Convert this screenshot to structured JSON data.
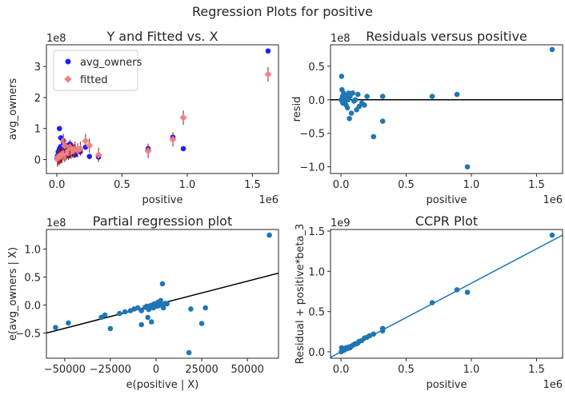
{
  "suptitle": "Regression Plots for positive",
  "chart_data": [
    {
      "type": "scatter",
      "title": "Y and Fitted vs. X",
      "xlabel": "positive",
      "ylabel": "avg_owners",
      "x_offset_label": "1e6",
      "y_offset_label": "1e8",
      "xlim": [
        -0.08,
        1.7
      ],
      "ylim": [
        -0.45,
        3.7
      ],
      "xticks": [
        0,
        0.5,
        1,
        1.5
      ],
      "xtick_labels": [
        "0.0",
        "0.5",
        "1.0",
        "1.5"
      ],
      "yticks": [
        0,
        1,
        2,
        3
      ],
      "ytick_labels": [
        "0",
        "1",
        "2",
        "3"
      ],
      "legend": {
        "placement": "top-left",
        "entries": [
          "avg_owners",
          "fitted"
        ]
      },
      "colors": {
        "observed": "#1f1fff",
        "fitted": "#f08080",
        "errbar": "#8b1a1a"
      },
      "series": [
        {
          "name": "avg_owners",
          "points": [
            [
              0.002,
              0.05
            ],
            [
              0.005,
              0.12
            ],
            [
              0.01,
              0.25
            ],
            [
              0.015,
              0.08
            ],
            [
              0.02,
              0.35
            ],
            [
              0.025,
              0.18
            ],
            [
              0.03,
              0.42
            ],
            [
              0.035,
              0.1
            ],
            [
              0.04,
              0.3
            ],
            [
              0.045,
              0.2
            ],
            [
              0.05,
              0.55
            ],
            [
              0.06,
              0.15
            ],
            [
              0.065,
              0.38
            ],
            [
              0.07,
              0.25
            ],
            [
              0.08,
              0.45
            ],
            [
              0.09,
              0.12
            ],
            [
              0.1,
              0.3
            ],
            [
              0.11,
              0.35
            ],
            [
              0.12,
              0.2
            ],
            [
              0.13,
              0.4
            ],
            [
              0.14,
              0.15
            ],
            [
              0.16,
              0.3
            ],
            [
              0.18,
              0.25
            ],
            [
              0.22,
              0.4
            ],
            [
              0.25,
              0.1
            ],
            [
              0.32,
              0.08
            ],
            [
              0.02,
              1.0
            ],
            [
              0.03,
              0.7
            ],
            [
              0.05,
              0.6
            ],
            [
              0.1,
              0.5
            ],
            [
              0.7,
              0.35
            ],
            [
              0.89,
              0.72
            ],
            [
              0.97,
              0.35
            ],
            [
              1.62,
              3.5
            ]
          ]
        },
        {
          "name": "fitted",
          "points": [
            [
              0.005,
              0.0
            ],
            [
              0.01,
              0.05
            ],
            [
              0.015,
              0.1
            ],
            [
              0.02,
              0.05
            ],
            [
              0.025,
              0.12
            ],
            [
              0.03,
              0.1
            ],
            [
              0.035,
              0.15
            ],
            [
              0.04,
              0.12
            ],
            [
              0.05,
              0.2
            ],
            [
              0.06,
              0.15
            ],
            [
              0.07,
              0.2
            ],
            [
              0.08,
              0.25
            ],
            [
              0.09,
              0.22
            ],
            [
              0.1,
              0.28
            ],
            [
              0.11,
              0.25
            ],
            [
              0.12,
              0.3
            ],
            [
              0.13,
              0.28
            ],
            [
              0.14,
              0.35
            ],
            [
              0.05,
              0.6
            ],
            [
              0.06,
              0.45
            ],
            [
              0.1,
              0.4
            ],
            [
              0.16,
              0.3
            ],
            [
              0.18,
              0.35
            ],
            [
              0.22,
              0.6
            ],
            [
              0.25,
              0.45
            ],
            [
              0.32,
              0.15
            ],
            [
              0.7,
              0.28
            ],
            [
              0.89,
              0.65
            ],
            [
              0.97,
              1.35
            ],
            [
              1.62,
              2.75
            ]
          ]
        }
      ]
    },
    {
      "type": "scatter",
      "title": "Residuals versus positive",
      "xlabel": "positive",
      "ylabel": "resid",
      "x_offset_label": "1e6",
      "y_offset_label": "1e8",
      "xlim": [
        -0.08,
        1.7
      ],
      "ylim": [
        -1.1,
        0.82
      ],
      "xticks": [
        0,
        0.5,
        1,
        1.5
      ],
      "xtick_labels": [
        "0.0",
        "0.5",
        "1.0",
        "1.5"
      ],
      "yticks": [
        -1.0,
        -0.5,
        0.0,
        0.5
      ],
      "ytick_labels": [
        "−1.0",
        "−0.5",
        "0.0",
        "0.5"
      ],
      "hline": 0,
      "colors": {
        "points": "#1f77b4",
        "line": "#000000"
      },
      "points": [
        [
          0.002,
          0.0
        ],
        [
          0.005,
          0.35
        ],
        [
          0.008,
          0.15
        ],
        [
          0.01,
          -0.02
        ],
        [
          0.012,
          0.05
        ],
        [
          0.015,
          -0.05
        ],
        [
          0.02,
          0.1
        ],
        [
          0.025,
          0.02
        ],
        [
          0.03,
          -0.03
        ],
        [
          0.035,
          0.05
        ],
        [
          0.04,
          -0.08
        ],
        [
          0.045,
          0.02
        ],
        [
          0.05,
          -0.12
        ],
        [
          0.055,
          0.0
        ],
        [
          0.06,
          0.1
        ],
        [
          0.065,
          -0.28
        ],
        [
          0.07,
          0.05
        ],
        [
          0.08,
          -0.2
        ],
        [
          0.09,
          0.1
        ],
        [
          0.1,
          -0.02
        ],
        [
          0.11,
          0.0
        ],
        [
          0.12,
          -0.15
        ],
        [
          0.13,
          0.08
        ],
        [
          0.14,
          -0.1
        ],
        [
          0.16,
          -0.05
        ],
        [
          0.18,
          -0.08
        ],
        [
          0.2,
          0.05
        ],
        [
          0.25,
          -0.55
        ],
        [
          0.32,
          0.05
        ],
        [
          0.32,
          -0.32
        ],
        [
          0.7,
          0.05
        ],
        [
          0.89,
          0.08
        ],
        [
          0.97,
          -1.0
        ],
        [
          1.62,
          0.75
        ]
      ]
    },
    {
      "type": "scatter",
      "title": "Partial regression plot",
      "xlabel": "e(positive | X)",
      "ylabel": "e(avg_owners | X)",
      "y_offset_label": "1e8",
      "xlim": [
        -60000,
        67000
      ],
      "ylim": [
        -0.95,
        1.35
      ],
      "xticks": [
        -50000,
        -25000,
        0,
        25000,
        50000
      ],
      "xtick_labels": [
        "−50000",
        "−25000",
        "0",
        "25000",
        "50000"
      ],
      "yticks": [
        -0.5,
        0.0,
        0.5,
        1.0
      ],
      "ytick_labels": [
        "−0.5",
        "0.0",
        "0.5",
        "1.0"
      ],
      "fit_line": [
        [
          -60000,
          -0.5
        ],
        [
          67000,
          0.57
        ]
      ],
      "colors": {
        "points": "#1f77b4",
        "line": "#000000"
      },
      "points": [
        [
          -55000,
          -0.4
        ],
        [
          -48000,
          -0.32
        ],
        [
          -30000,
          -0.22
        ],
        [
          -28000,
          -0.18
        ],
        [
          -25000,
          -0.42
        ],
        [
          -20000,
          -0.15
        ],
        [
          -17000,
          -0.12
        ],
        [
          -14000,
          -0.1
        ],
        [
          -12000,
          -0.07
        ],
        [
          -10000,
          -0.05
        ],
        [
          -8000,
          -0.1
        ],
        [
          -6000,
          -0.04
        ],
        [
          -5000,
          -0.02
        ],
        [
          -4000,
          -0.08
        ],
        [
          -3000,
          -0.01
        ],
        [
          -2000,
          0.0
        ],
        [
          -1500,
          -0.05
        ],
        [
          -1000,
          0.02
        ],
        [
          0,
          0.0
        ],
        [
          500,
          -0.02
        ],
        [
          1000,
          0.05
        ],
        [
          1500,
          -0.01
        ],
        [
          2000,
          0.02
        ],
        [
          2500,
          0.08
        ],
        [
          3000,
          0.0
        ],
        [
          3500,
          0.38
        ],
        [
          4000,
          -0.05
        ],
        [
          5000,
          0.03
        ],
        [
          6000,
          0.02
        ],
        [
          -2500,
          -0.3
        ],
        [
          -4500,
          -0.22
        ],
        [
          -8000,
          -0.35
        ],
        [
          18000,
          -0.85
        ],
        [
          19000,
          -0.07
        ],
        [
          25000,
          -0.33
        ],
        [
          27000,
          -0.05
        ],
        [
          62000,
          1.25
        ]
      ]
    },
    {
      "type": "scatter",
      "title": "CCPR Plot",
      "xlabel": "positive",
      "ylabel": "Residual + positive*beta_3",
      "x_offset_label": "1e6",
      "y_offset_label": "1e9",
      "xlim": [
        -0.08,
        1.7
      ],
      "ylim": [
        -0.08,
        1.52
      ],
      "xticks": [
        0,
        0.5,
        1,
        1.5
      ],
      "xtick_labels": [
        "0.0",
        "0.5",
        "1.0",
        "1.5"
      ],
      "yticks": [
        0.0,
        0.5,
        1.0,
        1.5
      ],
      "ytick_labels": [
        "0.0",
        "0.5",
        "1.0",
        "1.5"
      ],
      "fit_line": [
        [
          -0.08,
          -0.07
        ],
        [
          1.7,
          1.45
        ]
      ],
      "colors": {
        "points": "#1f77b4",
        "line": "#1f77b4"
      },
      "points": [
        [
          0.002,
          0.0
        ],
        [
          0.005,
          0.05
        ],
        [
          0.01,
          0.01
        ],
        [
          0.015,
          0.02
        ],
        [
          0.02,
          0.04
        ],
        [
          0.025,
          0.02
        ],
        [
          0.03,
          0.03
        ],
        [
          0.04,
          0.05
        ],
        [
          0.05,
          0.04
        ],
        [
          0.06,
          0.06
        ],
        [
          0.07,
          0.05
        ],
        [
          0.08,
          0.07
        ],
        [
          0.09,
          0.08
        ],
        [
          0.1,
          0.09
        ],
        [
          0.11,
          0.1
        ],
        [
          0.12,
          0.1
        ],
        [
          0.13,
          0.11
        ],
        [
          0.14,
          0.13
        ],
        [
          0.16,
          0.14
        ],
        [
          0.18,
          0.17
        ],
        [
          0.2,
          0.18
        ],
        [
          0.22,
          0.2
        ],
        [
          0.25,
          0.22
        ],
        [
          0.32,
          0.26
        ],
        [
          0.32,
          0.29
        ],
        [
          0.7,
          0.61
        ],
        [
          0.89,
          0.77
        ],
        [
          0.97,
          0.74
        ],
        [
          1.62,
          1.45
        ]
      ]
    }
  ]
}
